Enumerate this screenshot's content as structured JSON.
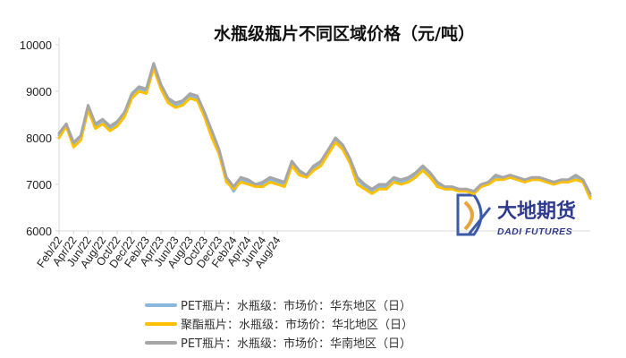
{
  "chart_data": {
    "type": "line",
    "title": "水瓶级瓶片不同区域价格（元/吨）",
    "xlabel": "",
    "ylabel": "",
    "ylim": [
      6000,
      10000
    ],
    "yticks": [
      6000,
      7000,
      8000,
      9000,
      10000
    ],
    "xticks": [
      "Feb/22",
      "Apr/22",
      "Jun/22",
      "Aug/22",
      "Oct/22",
      "Dec/22",
      "Feb/23",
      "Apr/23",
      "Jun/23",
      "Aug/23",
      "Oct/23",
      "Dec/23",
      "Feb/24",
      "Apr/24",
      "Jun/24",
      "Aug/24"
    ],
    "x_month_index": [
      0,
      1,
      2,
      3,
      4,
      5,
      6,
      7,
      8,
      9,
      10,
      11,
      12,
      13,
      14,
      15,
      16,
      17,
      18,
      19,
      20,
      21,
      22,
      23,
      24,
      25,
      26,
      27,
      28,
      29,
      30,
      31,
      32,
      33,
      34,
      35,
      36,
      37,
      38,
      39,
      40,
      41,
      42,
      43,
      44,
      45,
      46,
      47,
      48,
      49,
      50,
      51,
      52,
      53,
      54,
      55,
      56,
      57,
      58,
      59,
      60,
      61,
      62,
      63,
      64,
      65,
      66,
      67,
      68,
      69,
      70,
      71,
      72,
      73
    ],
    "series": [
      {
        "name": "PET瓶片：水瓶级：市场价：华东地区（日）",
        "color": "#8ab8dc",
        "values": [
          8050,
          8300,
          7850,
          8000,
          8650,
          8250,
          8350,
          8200,
          8300,
          8500,
          8900,
          9050,
          9000,
          9550,
          9100,
          8800,
          8700,
          8750,
          8900,
          8850,
          8500,
          8100,
          7700,
          7100,
          6850,
          7100,
          7050,
          6950,
          7000,
          7100,
          7050,
          7000,
          7450,
          7250,
          7150,
          7350,
          7450,
          7700,
          7950,
          7800,
          7500,
          7100,
          6950,
          6850,
          6950,
          6950,
          7100,
          7050,
          7100,
          7200,
          7350,
          7200,
          7000,
          6900,
          6900,
          6850,
          6850,
          6800,
          6950,
          7000,
          7150,
          7100,
          7150,
          7100,
          7050,
          7100,
          7100,
          7050,
          7000,
          7050,
          7050,
          7150,
          7050,
          6750
        ]
      },
      {
        "name": "聚酯瓶片：水瓶级：市场价：华北地区（日）",
        "color": "#ffc000",
        "values": [
          8000,
          8250,
          7800,
          7950,
          8600,
          8200,
          8300,
          8150,
          8250,
          8450,
          8850,
          9000,
          8950,
          9500,
          9050,
          8750,
          8650,
          8700,
          8850,
          8800,
          8450,
          8000,
          7650,
          7050,
          6900,
          7050,
          7000,
          6950,
          6950,
          7050,
          7000,
          6950,
          7400,
          7200,
          7150,
          7300,
          7400,
          7650,
          7900,
          7750,
          7450,
          7000,
          6900,
          6800,
          6900,
          6900,
          7050,
          7000,
          7050,
          7150,
          7300,
          7150,
          6950,
          6900,
          6900,
          6850,
          6850,
          6800,
          6950,
          7000,
          7100,
          7100,
          7150,
          7100,
          7050,
          7100,
          7100,
          7050,
          7000,
          7050,
          7050,
          7100,
          7050,
          6700
        ]
      },
      {
        "name": "PET瓶片：水瓶级：市场价：华南地区（日）",
        "color": "#a6a6a6",
        "values": [
          8100,
          8300,
          7900,
          8050,
          8700,
          8300,
          8400,
          8250,
          8350,
          8550,
          8950,
          9100,
          9050,
          9600,
          9150,
          8850,
          8750,
          8800,
          8950,
          8900,
          8550,
          8150,
          7750,
          7150,
          6950,
          7150,
          7100,
          7000,
          7050,
          7150,
          7100,
          7050,
          7500,
          7300,
          7200,
          7400,
          7500,
          7750,
          8000,
          7850,
          7550,
          7150,
          7000,
          6900,
          7000,
          7000,
          7150,
          7100,
          7150,
          7250,
          7400,
          7250,
          7050,
          6950,
          6950,
          6900,
          6900,
          6850,
          7000,
          7050,
          7200,
          7150,
          7200,
          7150,
          7100,
          7150,
          7150,
          7100,
          7050,
          7100,
          7100,
          7200,
          7100,
          6800
        ]
      }
    ],
    "legend_position": "bottom",
    "grid": false
  },
  "logo": {
    "text_cn": "大地期货",
    "text_en": "DADI FUTURES"
  }
}
